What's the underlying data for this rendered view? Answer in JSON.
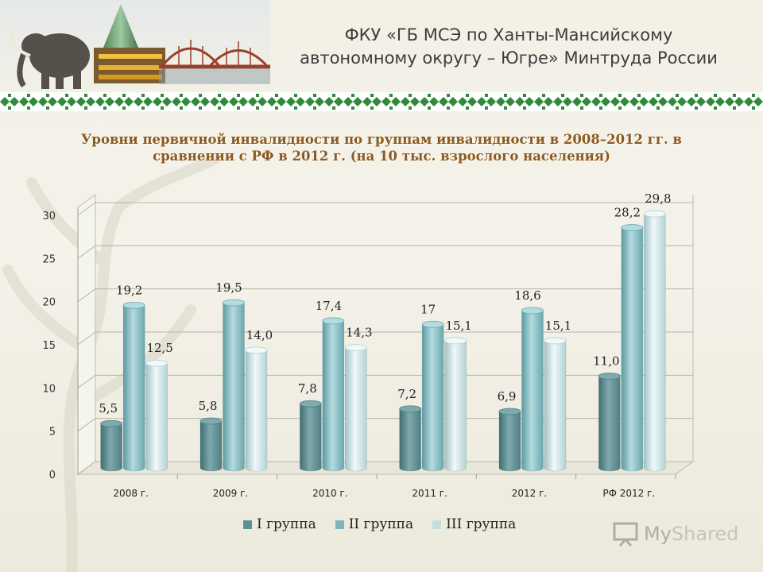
{
  "header": {
    "org_line1": "ФКУ «ГБ МСЭ по Ханты-Мансийскому",
    "org_line2": "автономному округу – Югре» Минтруда России"
  },
  "chart_title_line1": "Уровни первичной инвалидности по группам инвалидности  в 2008–2012 гг. в",
  "chart_title_line2": "сравнении с РФ в 2012 г. (на 10 тыс. взрослого населения)",
  "chart_data": {
    "type": "bar",
    "title": "Уровни первичной инвалидности по группам инвалидности в 2008–2012 гг. в сравнении с РФ в 2012 г. (на 10 тыс. взрослого населения)",
    "categories": [
      "2008 г.",
      "2009 г.",
      "2010 г.",
      "2011 г.",
      "2012 г.",
      "РФ 2012 г."
    ],
    "series": [
      {
        "name": "I группа",
        "values": [
          5.5,
          5.8,
          7.8,
          7.2,
          6.9,
          11.0
        ],
        "labels": [
          "5,5",
          "5,8",
          "7,8",
          "7,2",
          "6,9",
          "11,0"
        ]
      },
      {
        "name": "II группа",
        "values": [
          19.2,
          19.5,
          17.4,
          17,
          18.6,
          28.2
        ],
        "labels": [
          "19,2",
          "19,5",
          "17,4",
          "17",
          "18,6",
          "28,2"
        ]
      },
      {
        "name": "III группа",
        "values": [
          12.5,
          14.0,
          14.3,
          15.1,
          15.1,
          29.8
        ],
        "labels": [
          "12,5",
          "14,0",
          "14,3",
          "15,1",
          "15,1",
          "29,8"
        ]
      }
    ],
    "yticks": [
      "0",
      "5",
      "10",
      "15",
      "20",
      "25",
      "30"
    ],
    "ylim": [
      0,
      30
    ],
    "grid": true,
    "legend_position": "bottom",
    "colors": [
      "#5e8f93",
      "#7fb4bb",
      "#c3dde0"
    ]
  },
  "watermark": {
    "part1": "My",
    "part2": "Shared"
  }
}
